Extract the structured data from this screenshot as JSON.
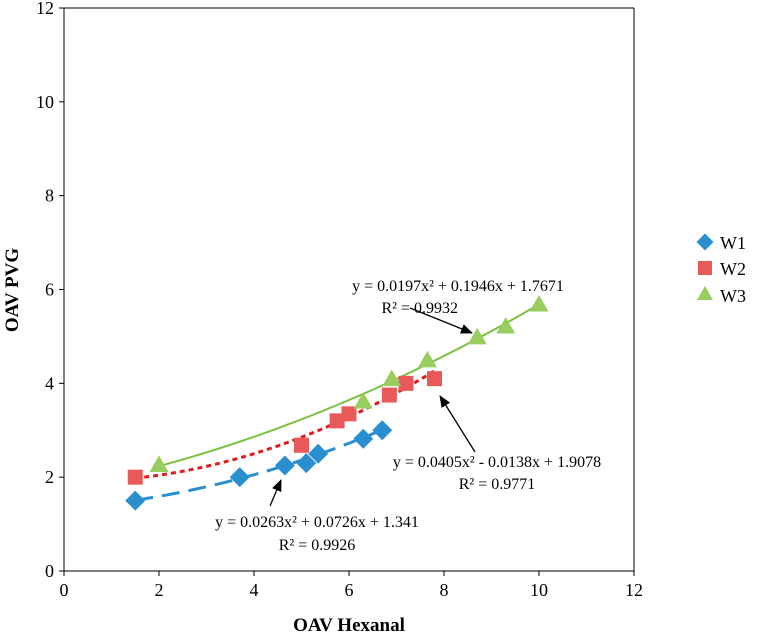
{
  "chart_data": {
    "type": "scatter",
    "xlabel": "OAV Hexanal",
    "ylabel": "OAV PVG",
    "xlim": [
      0,
      12
    ],
    "ylim": [
      0,
      12
    ],
    "xticks": [
      0,
      2,
      4,
      6,
      8,
      10,
      12
    ],
    "yticks": [
      0,
      2,
      4,
      6,
      8,
      10,
      12
    ],
    "grid": false,
    "legend_position": "right",
    "series": [
      {
        "name": "W1",
        "marker": "diamond",
        "color": "#2A8FCF",
        "points": [
          [
            1.5,
            1.5
          ],
          [
            3.7,
            2.0
          ],
          [
            4.65,
            2.25
          ],
          [
            5.1,
            2.3
          ],
          [
            5.35,
            2.5
          ],
          [
            6.3,
            2.82
          ],
          [
            6.7,
            3.0
          ]
        ],
        "trendline": {
          "a": 0.0263,
          "b": 0.0726,
          "c": 1.341,
          "x_range": [
            1.5,
            6.7
          ],
          "style": "long-dash",
          "color": "#2A8FCF"
        },
        "equation": "y = 0.0263x² + 0.0726x + 1.341",
        "r2": "R² = 0.9926"
      },
      {
        "name": "W2",
        "marker": "square",
        "color": "#E85A5A",
        "points": [
          [
            1.5,
            2.0
          ],
          [
            5.0,
            2.68
          ],
          [
            5.75,
            3.2
          ],
          [
            6.0,
            3.35
          ],
          [
            6.85,
            3.75
          ],
          [
            7.2,
            4.0
          ],
          [
            7.8,
            4.1
          ]
        ],
        "trendline": {
          "a": 0.0405,
          "b": -0.0138,
          "c": 1.9078,
          "x_range": [
            1.5,
            7.8
          ],
          "style": "dotted",
          "color": "#E01B1B"
        },
        "equation": "y = 0.0405x² - 0.0138x + 1.9078",
        "r2": "R² = 0.9771"
      },
      {
        "name": "W3",
        "marker": "triangle",
        "color": "#9ACD5F",
        "points": [
          [
            2.0,
            2.25
          ],
          [
            6.3,
            3.6
          ],
          [
            6.9,
            4.08
          ],
          [
            7.65,
            4.48
          ],
          [
            8.7,
            4.97
          ],
          [
            9.3,
            5.2
          ],
          [
            10.0,
            5.67
          ]
        ],
        "trendline": {
          "a": 0.0197,
          "b": 0.1946,
          "c": 1.7671,
          "x_range": [
            2.0,
            10.0
          ],
          "style": "solid",
          "color": "#7DC142"
        },
        "equation": "y = 0.0197x² + 0.1946x + 1.7671",
        "r2": "R² = 0.9932"
      }
    ]
  }
}
